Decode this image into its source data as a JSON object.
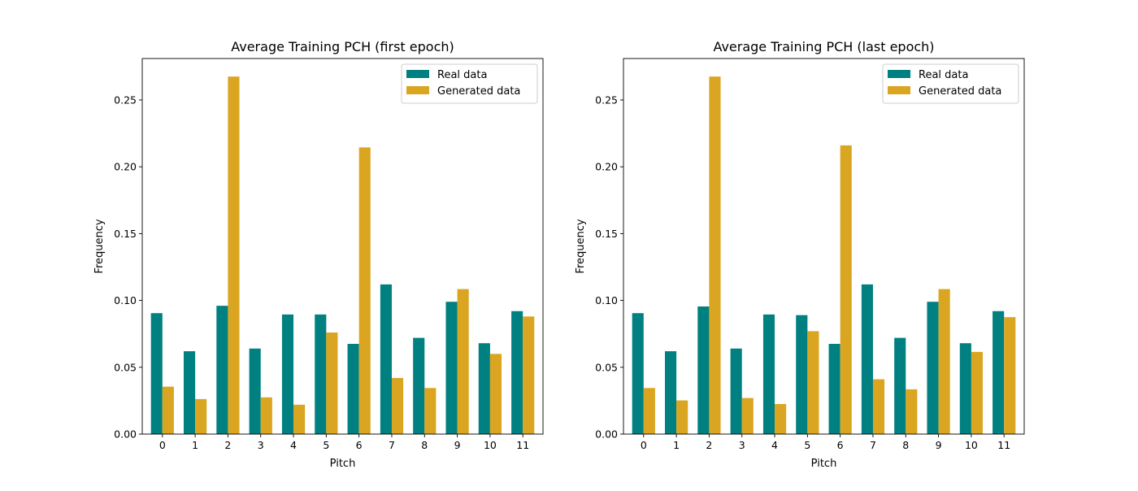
{
  "colors": {
    "real": "#008080",
    "generated": "#daa520"
  },
  "chart_data": [
    {
      "type": "bar",
      "title": "Average Training PCH (first epoch)",
      "xlabel": "Pitch",
      "ylabel": "Frequency",
      "categories": [
        "0",
        "1",
        "2",
        "3",
        "4",
        "5",
        "6",
        "7",
        "8",
        "9",
        "10",
        "11"
      ],
      "yticks": [
        "0.00",
        "0.05",
        "0.10",
        "0.15",
        "0.20",
        "0.25"
      ],
      "ylim": [
        0,
        0.281
      ],
      "legend": "top-right",
      "series": [
        {
          "name": "Real data",
          "color": "#008080",
          "values": [
            0.0905,
            0.062,
            0.096,
            0.064,
            0.0895,
            0.0895,
            0.0675,
            0.112,
            0.072,
            0.099,
            0.068,
            0.092
          ]
        },
        {
          "name": "Generated data",
          "color": "#daa520",
          "values": [
            0.0355,
            0.0262,
            0.2675,
            0.0275,
            0.022,
            0.076,
            0.2145,
            0.042,
            0.0345,
            0.1085,
            0.06,
            0.088
          ]
        }
      ]
    },
    {
      "type": "bar",
      "title": "Average Training PCH (last epoch)",
      "xlabel": "Pitch",
      "ylabel": "Frequency",
      "categories": [
        "0",
        "1",
        "2",
        "3",
        "4",
        "5",
        "6",
        "7",
        "8",
        "9",
        "10",
        "11"
      ],
      "yticks": [
        "0.00",
        "0.05",
        "0.10",
        "0.15",
        "0.20",
        "0.25"
      ],
      "ylim": [
        0,
        0.281
      ],
      "legend": "top-right",
      "series": [
        {
          "name": "Real data",
          "color": "#008080",
          "values": [
            0.0905,
            0.062,
            0.0955,
            0.064,
            0.0895,
            0.089,
            0.0675,
            0.112,
            0.072,
            0.099,
            0.068,
            0.092
          ]
        },
        {
          "name": "Generated data",
          "color": "#daa520",
          "values": [
            0.0345,
            0.0252,
            0.2675,
            0.027,
            0.0225,
            0.077,
            0.216,
            0.041,
            0.0335,
            0.1085,
            0.0615,
            0.0875
          ]
        }
      ]
    }
  ]
}
